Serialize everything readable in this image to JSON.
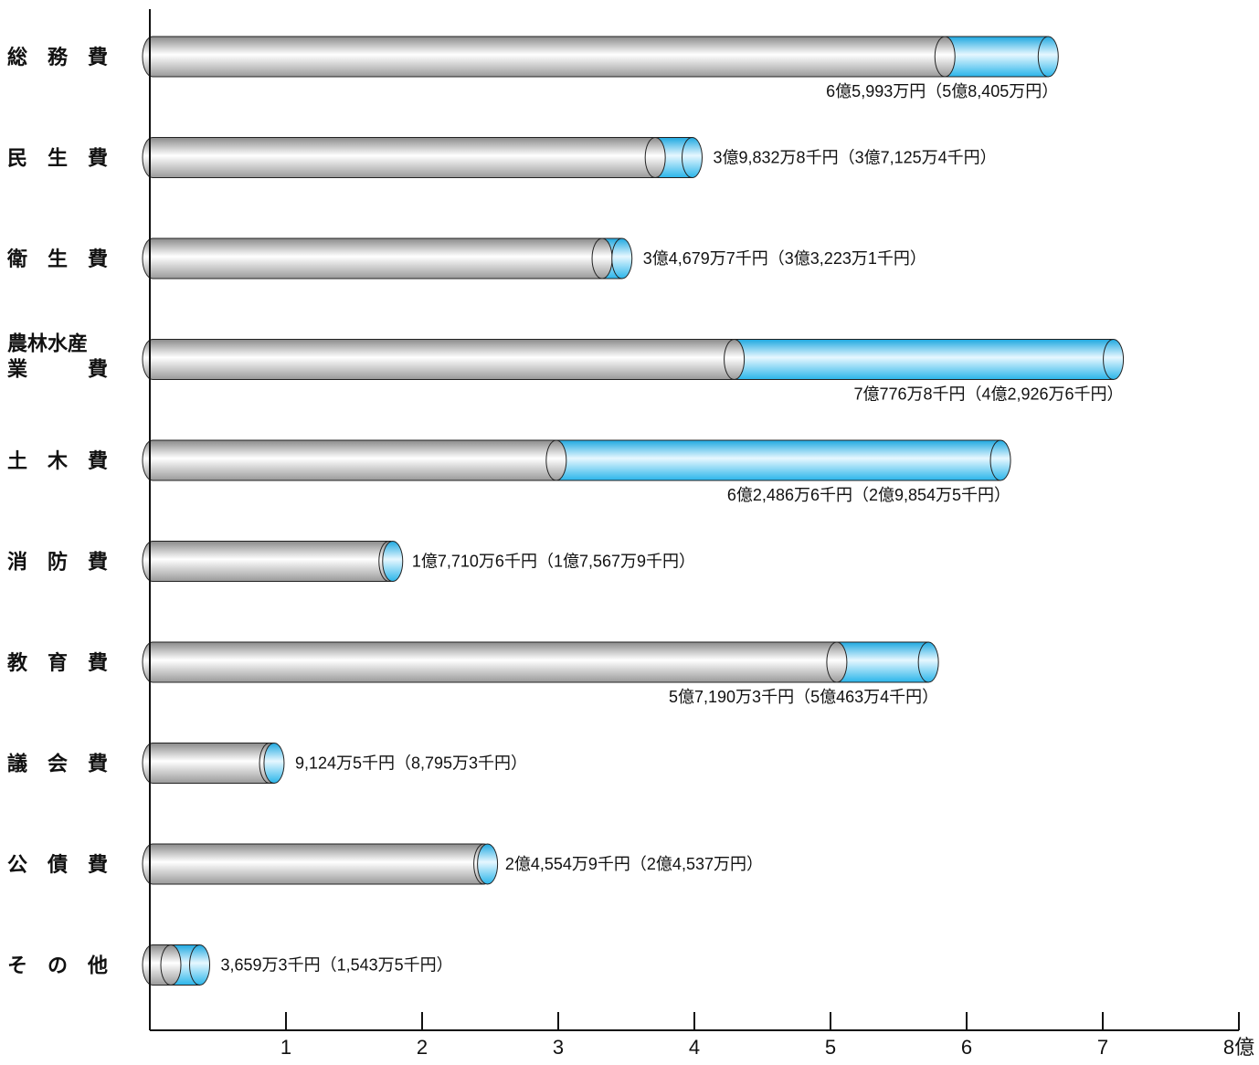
{
  "chart_data": {
    "type": "bar",
    "orientation": "horizontal",
    "style": "stacked-cylinder",
    "categories": [
      {
        "label": [
          "総　務　費"
        ],
        "current": 6.5993,
        "previous": 5.8405,
        "value_text": "6億5,993万円（5億8,405万円）",
        "text_pos": "below"
      },
      {
        "label": [
          "民　生　費"
        ],
        "current": 3.98328,
        "previous": 3.71254,
        "value_text": "3億9,832万8千円（3億7,125万4千円）",
        "text_pos": "right"
      },
      {
        "label": [
          "衛　生　費"
        ],
        "current": 3.46797,
        "previous": 3.32231,
        "value_text": "3億4,679万7千円（3億3,223万1千円）",
        "text_pos": "right"
      },
      {
        "label": [
          "農林水産",
          "業　　　費"
        ],
        "current": 7.07768,
        "previous": 4.29266,
        "value_text": "7億776万8千円（4億2,926万6千円）",
        "text_pos": "below"
      },
      {
        "label": [
          "土　木　費"
        ],
        "current": 6.24866,
        "previous": 2.98545,
        "value_text": "6億2,486万6千円（2億9,854万5千円）",
        "text_pos": "below"
      },
      {
        "label": [
          "消　防　費"
        ],
        "current": 1.77106,
        "previous": 1.75679,
        "value_text": "1億7,710万6千円（1億7,567万9千円）",
        "text_pos": "right"
      },
      {
        "label": [
          "教　育　費"
        ],
        "current": 5.71903,
        "previous": 5.04634,
        "value_text": "5億7,190万3千円（5億463万4千円）",
        "text_pos": "below"
      },
      {
        "label": [
          "議　会　費"
        ],
        "current": 0.91245,
        "previous": 0.87953,
        "value_text": "9,124万5千円（8,795万3千円）",
        "text_pos": "right"
      },
      {
        "label": [
          "公　債　費"
        ],
        "current": 2.45549,
        "previous": 2.4537,
        "value_text": "2億4,554万9千円（2億4,537万円）",
        "text_pos": "right"
      },
      {
        "label": [
          "そ　の　他"
        ],
        "current": 0.36593,
        "previous": 0.15435,
        "value_text": "3,659万3千円（1,543万5千円）",
        "text_pos": "right"
      }
    ],
    "x_axis": {
      "ticks": [
        "1",
        "2",
        "3",
        "4",
        "5",
        "6",
        "7",
        "8億"
      ],
      "range": [
        0,
        8
      ]
    },
    "colors": {
      "previous_fill": "#c8c8c8",
      "increase_fill": "#29b6ea",
      "outline": "#222222"
    }
  }
}
